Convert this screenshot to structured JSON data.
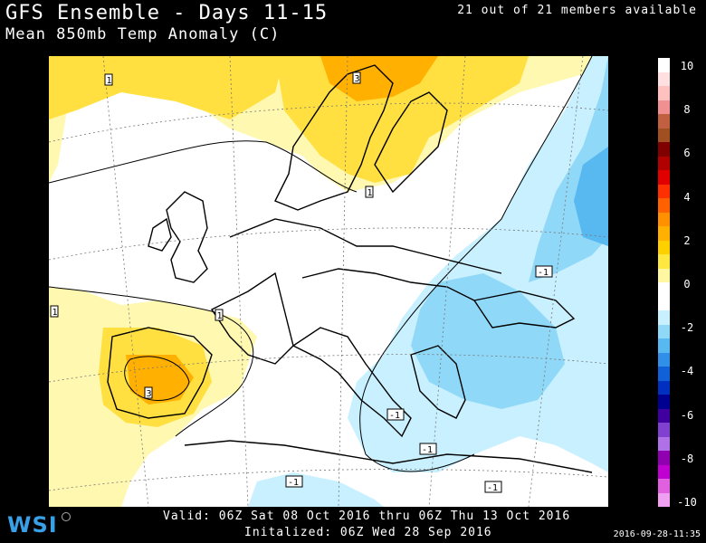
{
  "header": {
    "title": "GFS Ensemble - Days 11-15",
    "subtitle": "Mean 850mb Temp Anomaly (C)",
    "members": "21 out of 21 members available"
  },
  "map": {
    "region": "Europe",
    "contour_labels": [
      "1",
      "1",
      "1",
      "1",
      "1",
      "3",
      "-1",
      "-1",
      "-1",
      "-1",
      "-1",
      "-1",
      "3"
    ]
  },
  "colorbar": {
    "labels": [
      "10",
      "8",
      "6",
      "4",
      "2",
      "0",
      "-2",
      "-4",
      "-6",
      "-8",
      "-10"
    ],
    "colors": [
      "#ffffff",
      "#ffe0e0",
      "#ffc0c0",
      "#f09090",
      "#c06040",
      "#a05020",
      "#800000",
      "#b00000",
      "#e00000",
      "#ff3000",
      "#ff6000",
      "#ff9000",
      "#ffb000",
      "#ffd000",
      "#ffe840",
      "#fff8a0",
      "#ffffff",
      "#ffffff",
      "#c8f0ff",
      "#90d8f8",
      "#58b8f0",
      "#3090e8",
      "#1060d8",
      "#0030c0",
      "#000090",
      "#4000a0",
      "#8040d0",
      "#b070e8",
      "#9000b0",
      "#c000d0",
      "#e060e0",
      "#f0a0f0"
    ]
  },
  "footer": {
    "logo": "WSI",
    "valid": "Valid: 06Z Sat 08 Oct 2016 thru 06Z Thu 13 Oct 2016",
    "initialized": "Initalized: 06Z Wed 28 Sep 2016",
    "timestamp": "2016-09-28-11:35"
  }
}
